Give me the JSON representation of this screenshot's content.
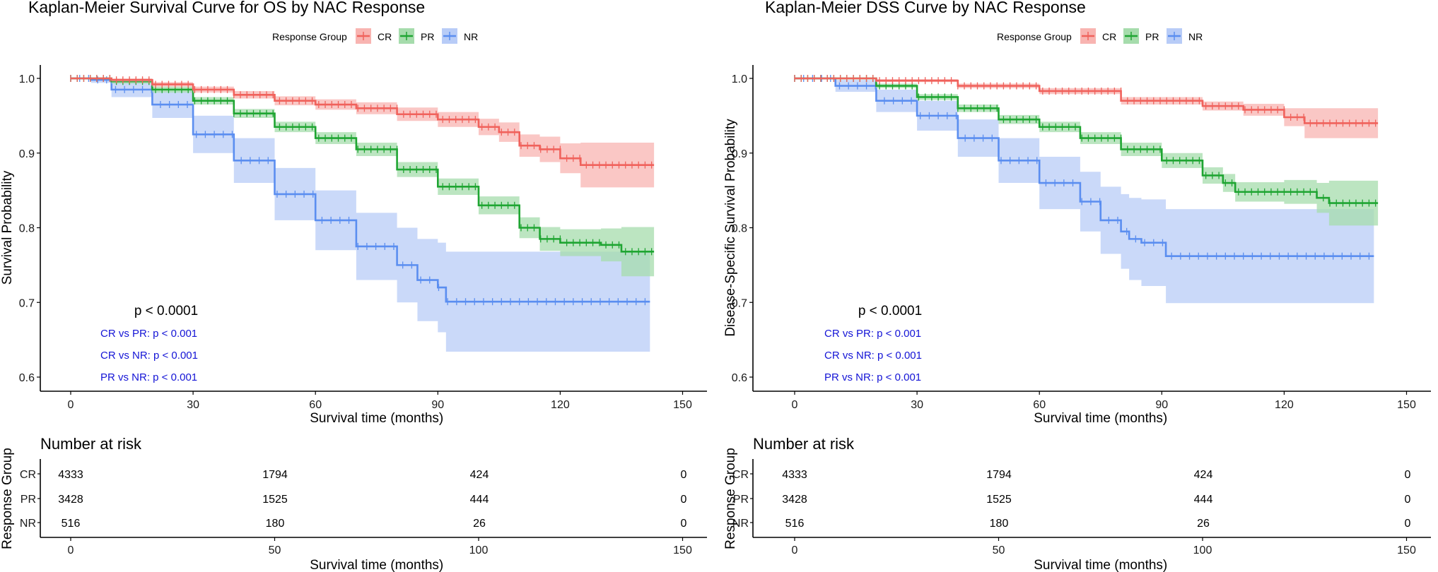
{
  "colors": {
    "CR": "#f0625c",
    "PR": "#1fa532",
    "NR": "#5b8ef0",
    "CR_band": "#f8b4b1",
    "PR_band": "#a6dcac",
    "NR_band": "#b8ccf7",
    "pairwise_text": "#1414d6"
  },
  "legend": {
    "title": "Response Group",
    "items": [
      "CR",
      "PR",
      "NR"
    ]
  },
  "chart_data": [
    {
      "id": "os",
      "type": "line",
      "subtype": "kaplan-meier step",
      "title": "Kaplan-Meier Survival Curve for OS by NAC Response",
      "xlabel": "Survival time (months)",
      "ylabel": "Survival Probability",
      "xlim": [
        0,
        150
      ],
      "ylim": [
        0.6,
        1.0
      ],
      "xticks": [
        0,
        30,
        60,
        90,
        120,
        150
      ],
      "yticks": [
        0.6,
        0.7,
        0.8,
        0.9,
        1.0
      ],
      "ytick_labels": [
        "0.6",
        "0.7",
        "0.8",
        "0.9",
        "1.0"
      ],
      "grid": false,
      "legend_position": "top",
      "pvalue": "p < 0.0001",
      "pairwise": [
        "CR vs PR: p < 0.001",
        "CR vs NR: p < 0.001",
        "PR vs NR: p < 0.001"
      ],
      "series": [
        {
          "name": "CR",
          "x": [
            0,
            10,
            20,
            30,
            40,
            50,
            60,
            70,
            80,
            90,
            100,
            105,
            110,
            115,
            120,
            125,
            143
          ],
          "y": [
            1.0,
            0.998,
            0.992,
            0.985,
            0.978,
            0.97,
            0.965,
            0.96,
            0.952,
            0.945,
            0.935,
            0.928,
            0.91,
            0.905,
            0.893,
            0.884,
            0.884
          ],
          "ci_halfwidth": [
            0.0,
            0.002,
            0.003,
            0.004,
            0.005,
            0.006,
            0.007,
            0.008,
            0.009,
            0.01,
            0.011,
            0.013,
            0.015,
            0.017,
            0.02,
            0.03,
            0.03
          ]
        },
        {
          "name": "PR",
          "x": [
            0,
            10,
            20,
            30,
            40,
            50,
            60,
            70,
            80,
            90,
            100,
            110,
            115,
            120,
            130,
            135,
            143
          ],
          "y": [
            1.0,
            0.996,
            0.985,
            0.97,
            0.953,
            0.935,
            0.92,
            0.905,
            0.878,
            0.855,
            0.83,
            0.8,
            0.785,
            0.78,
            0.777,
            0.768,
            0.768
          ],
          "ci_halfwidth": [
            0.0,
            0.003,
            0.004,
            0.005,
            0.006,
            0.007,
            0.008,
            0.009,
            0.01,
            0.011,
            0.012,
            0.014,
            0.016,
            0.018,
            0.022,
            0.033,
            0.033
          ]
        },
        {
          "name": "NR",
          "x": [
            0,
            5,
            10,
            20,
            30,
            40,
            50,
            60,
            70,
            80,
            85,
            90,
            92,
            142
          ],
          "y": [
            1.0,
            0.998,
            0.985,
            0.965,
            0.925,
            0.89,
            0.845,
            0.81,
            0.775,
            0.75,
            0.73,
            0.72,
            0.701,
            0.701
          ],
          "ci_halfwidth": [
            0.0,
            0.004,
            0.01,
            0.018,
            0.025,
            0.03,
            0.035,
            0.04,
            0.045,
            0.05,
            0.055,
            0.06,
            0.067,
            0.067
          ]
        }
      ],
      "risk_table": {
        "title": "Number at risk",
        "ylabel": "Response Group",
        "xlabel": "Survival time (months)",
        "times": [
          0,
          50,
          100,
          150
        ],
        "rows": [
          {
            "group": "CR",
            "values": [
              "4333",
              "1794",
              "424",
              "0"
            ]
          },
          {
            "group": "PR",
            "values": [
              "3428",
              "1525",
              "444",
              "0"
            ]
          },
          {
            "group": "NR",
            "values": [
              "516",
              "180",
              "26",
              "0"
            ]
          }
        ]
      }
    },
    {
      "id": "dss",
      "type": "line",
      "subtype": "kaplan-meier step",
      "title": "Kaplan-Meier DSS Curve by NAC Response",
      "xlabel": "Survival time (months)",
      "ylabel": "Disease-Specific Survival Probability",
      "xlim": [
        0,
        150
      ],
      "ylim": [
        0.6,
        1.0
      ],
      "xticks": [
        0,
        30,
        60,
        90,
        120,
        150
      ],
      "yticks": [
        0.6,
        0.7,
        0.8,
        0.9,
        1.0
      ],
      "ytick_labels": [
        "0.6",
        "0.7",
        "0.8",
        "0.9",
        "1.0"
      ],
      "grid": false,
      "legend_position": "top",
      "pvalue": "p < 0.0001",
      "pairwise": [
        "CR vs PR: p < 0.001",
        "CR vs NR: p < 0.001",
        "PR vs NR: p < 0.001"
      ],
      "series": [
        {
          "name": "CR",
          "x": [
            0,
            20,
            40,
            60,
            80,
            100,
            110,
            120,
            125,
            143
          ],
          "y": [
            1.0,
            0.997,
            0.99,
            0.983,
            0.97,
            0.963,
            0.958,
            0.948,
            0.94,
            0.94
          ],
          "ci_halfwidth": [
            0.0,
            0.002,
            0.003,
            0.004,
            0.005,
            0.006,
            0.008,
            0.012,
            0.02,
            0.02
          ]
        },
        {
          "name": "PR",
          "x": [
            0,
            20,
            30,
            40,
            50,
            60,
            70,
            80,
            90,
            100,
            105,
            108,
            120,
            128,
            131,
            143
          ],
          "y": [
            1.0,
            0.99,
            0.975,
            0.96,
            0.945,
            0.935,
            0.92,
            0.905,
            0.89,
            0.87,
            0.86,
            0.848,
            0.848,
            0.84,
            0.833,
            0.833
          ],
          "ci_halfwidth": [
            0.0,
            0.003,
            0.004,
            0.005,
            0.006,
            0.007,
            0.008,
            0.009,
            0.01,
            0.011,
            0.012,
            0.013,
            0.016,
            0.02,
            0.03,
            0.03
          ]
        },
        {
          "name": "NR",
          "x": [
            0,
            10,
            20,
            30,
            40,
            50,
            60,
            70,
            75,
            80,
            82,
            85,
            91,
            142
          ],
          "y": [
            1.0,
            0.99,
            0.97,
            0.95,
            0.92,
            0.89,
            0.86,
            0.835,
            0.81,
            0.795,
            0.785,
            0.78,
            0.762,
            0.762
          ],
          "ci_halfwidth": [
            0.0,
            0.008,
            0.015,
            0.02,
            0.025,
            0.03,
            0.035,
            0.04,
            0.045,
            0.05,
            0.055,
            0.058,
            0.063,
            0.063
          ]
        }
      ],
      "risk_table": {
        "title": "Number at risk",
        "ylabel": "Response Group",
        "xlabel": "Survival time (months)",
        "times": [
          0,
          50,
          100,
          150
        ],
        "rows": [
          {
            "group": "CR",
            "values": [
              "4333",
              "1794",
              "424",
              "0"
            ]
          },
          {
            "group": "PR",
            "values": [
              "3428",
              "1525",
              "444",
              "0"
            ]
          },
          {
            "group": "NR",
            "values": [
              "516",
              "180",
              "26",
              "0"
            ]
          }
        ]
      }
    }
  ]
}
